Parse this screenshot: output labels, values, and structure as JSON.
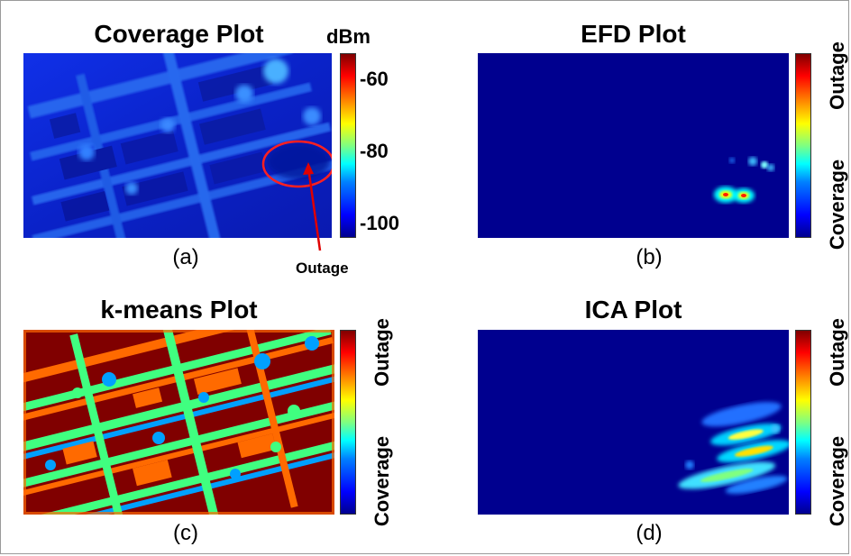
{
  "chart_data": [
    {
      "type": "heatmap",
      "title": "Coverage Plot",
      "caption": "(a)",
      "colorbar": {
        "unit": "dBm",
        "ticks": [
          "-60",
          "-80",
          "-100"
        ]
      },
      "annotation": "Outage"
    },
    {
      "type": "heatmap",
      "title": "EFD Plot",
      "caption": "(b)",
      "colorbar": {
        "labels": [
          "Outage",
          "Coverage"
        ]
      }
    },
    {
      "type": "heatmap",
      "title": "k-means Plot",
      "caption": "(c)",
      "colorbar": {
        "labels": [
          "Outage",
          "Coverage"
        ]
      }
    },
    {
      "type": "heatmap",
      "title": "ICA Plot",
      "caption": "(d)",
      "colorbar": {
        "labels": [
          "Outage",
          "Coverage"
        ]
      }
    }
  ]
}
